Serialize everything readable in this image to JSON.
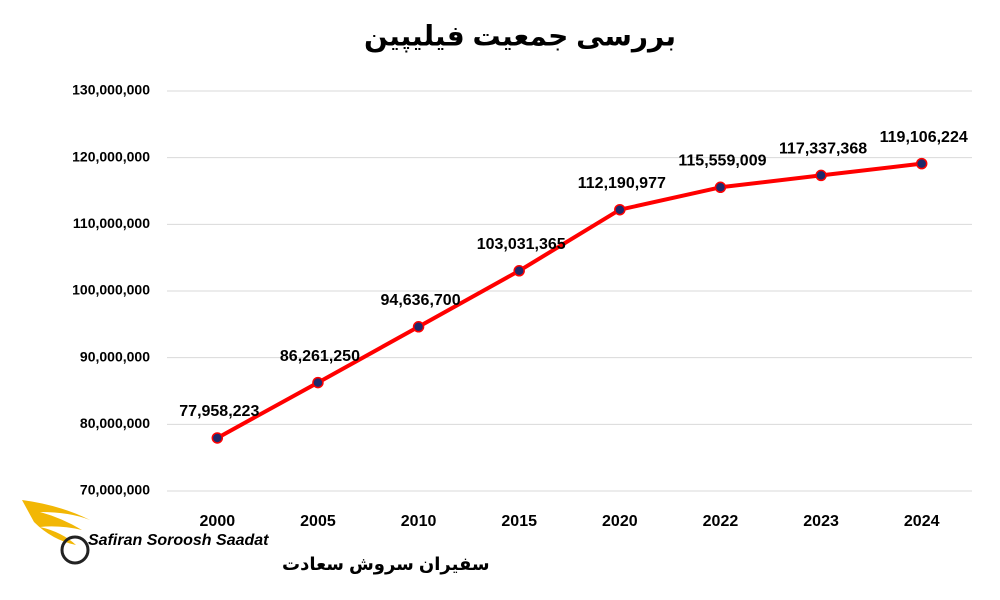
{
  "chart_data": {
    "type": "line",
    "title": "بررسی جمعیت فیلیپین",
    "categories": [
      "2000",
      "2005",
      "2010",
      "2015",
      "2020",
      "2022",
      "2023",
      "2024"
    ],
    "values": [
      77958223,
      86261250,
      94636700,
      103031365,
      112190977,
      115559009,
      117337368,
      119106224
    ],
    "value_labels": [
      "77,958,223",
      "86,261,250",
      "94,636,700",
      "103,031,365",
      "112,190,977",
      "115,559,009",
      "117,337,368",
      "119,106,224"
    ],
    "color": "#ff0000",
    "marker_color": "#1f2a6b",
    "ylim": [
      70000000,
      130000000
    ],
    "yticks": [
      {
        "value": 70000000,
        "label": "70,000,000"
      },
      {
        "value": 80000000,
        "label": "80,000,000"
      },
      {
        "value": 90000000,
        "label": "90,000,000"
      },
      {
        "value": 100000000,
        "label": "100,000,000"
      },
      {
        "value": 110000000,
        "label": "110,000,000"
      },
      {
        "value": 120000000,
        "label": "120,000,000"
      },
      {
        "value": 130000000,
        "label": "130,000,000"
      }
    ],
    "grid": true
  },
  "logo": {
    "name_en": "Safiran Soroosh Saadat",
    "name_fa": "سفیران سروش سعادت"
  }
}
